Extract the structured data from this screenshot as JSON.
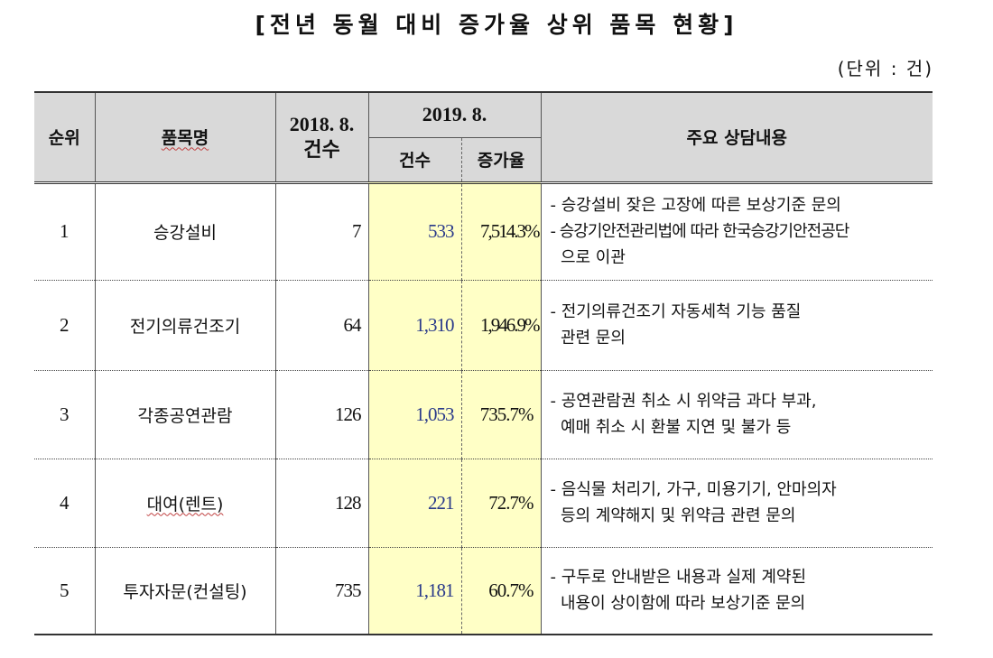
{
  "title": "[전년 동월 대비 증가율 상위 품목 현황]",
  "unit": "(단위 : 건)",
  "headers": {
    "rank": "순위",
    "item": "품목명",
    "prev_year_line1": "2018. 8.",
    "prev_year_line2": "건수",
    "curr_year": "2019. 8.",
    "curr_count": "건수",
    "increase_rate": "증가율",
    "details": "주요 상담내용"
  },
  "rows": [
    {
      "rank": "1",
      "item": "승강설비",
      "prev_count": "7",
      "curr_count": "533",
      "rate": "7,514.3%",
      "notes": [
        "- 승강설비 잦은 고장에 따른 보상기준 문의",
        "- 승강기안전관리법에 따라 한국승강기안전공단",
        "  으로 이관"
      ]
    },
    {
      "rank": "2",
      "item": "전기의류건조기",
      "prev_count": "64",
      "curr_count": "1,310",
      "rate": "1,946.9%",
      "notes": [
        "- 전기의류건조기 자동세척 기능 품질",
        "  관련 문의"
      ]
    },
    {
      "rank": "3",
      "item": "각종공연관람",
      "prev_count": "126",
      "curr_count": "1,053",
      "rate": "735.7%",
      "notes": [
        "- 공연관람권 취소 시 위약금 과다 부과,",
        "  예매 취소 시 환불 지연 및 불가 등"
      ]
    },
    {
      "rank": "4",
      "item": "대여(렌트)",
      "prev_count": "128",
      "curr_count": "221",
      "rate": "72.7%",
      "notes": [
        "- 음식물 처리기, 가구, 미용기기, 안마의자",
        "  등의 계약해지 및 위약금 관련 문의"
      ]
    },
    {
      "rank": "5",
      "item": "투자자문(컨설팅)",
      "prev_count": "735",
      "curr_count": "1,181",
      "rate": "60.7%",
      "notes": [
        "- 구두로 안내받은 내용과 실제 계약된",
        "  내용이 상이함에 따라 보상기준 문의"
      ]
    }
  ]
}
